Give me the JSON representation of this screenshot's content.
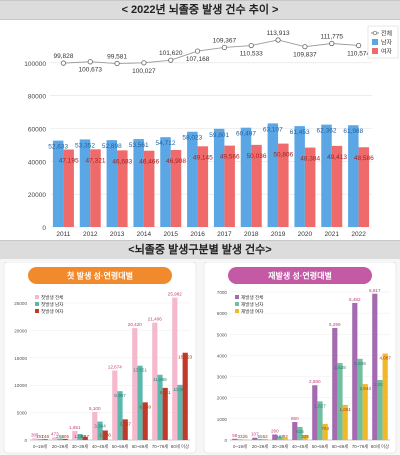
{
  "banner1": "< 2022년 뇌졸중 발생 건수 추이 >",
  "banner2": "<뇌졸중 발생구분별 발생 건수>",
  "colors": {
    "total": "#9a9a9a",
    "male": "#5ba7e5",
    "female": "#ef6b6b",
    "first_pill": "#f08a2c",
    "re_pill": "#c45aa6",
    "first_total": "#f5b8cd",
    "first_male": "#5ab8ad",
    "first_female": "#c0392b",
    "re_total": "#a56bb0",
    "re_male": "#6fbfa0",
    "re_female": "#f0b92a"
  },
  "chart_data": [
    {
      "type": "bar",
      "title": "",
      "categories": [
        "2011",
        "2012",
        "2013",
        "2014",
        "2015",
        "2016",
        "2017",
        "2018",
        "2019",
        "2020",
        "2021",
        "2022"
      ],
      "ylim": [
        0,
        120000
      ],
      "yticks": [
        "0",
        "20000",
        "40000",
        "60000",
        "80000",
        "100000"
      ],
      "legend": {
        "placement": "top-right",
        "entries": [
          "전체",
          "남자",
          "여자"
        ]
      },
      "series": [
        {
          "name": "전체",
          "kind": "line",
          "values": [
            99828,
            100673,
            99581,
            100027,
            101620,
            107168,
            109367,
            110533,
            113913,
            109837,
            111775,
            110574
          ],
          "labels": [
            "99,828",
            "100,673",
            "99,581",
            "100,027",
            "101,620",
            "107,168",
            "109,367",
            "110,533",
            "113,913",
            "109,837",
            "111,775",
            "110,574"
          ]
        },
        {
          "name": "남자",
          "kind": "bar",
          "values": [
            52633,
            53352,
            52898,
            53561,
            54712,
            58023,
            59801,
            60497,
            63107,
            61453,
            62362,
            61988
          ],
          "labels": [
            "52,633",
            "53,352",
            "52,898",
            "53,561",
            "54,712",
            "58,023",
            "59,801",
            "60,497",
            "63,107",
            "61,453",
            "62,362",
            "61,988"
          ]
        },
        {
          "name": "여자",
          "kind": "bar",
          "values": [
            47195,
            47321,
            46683,
            46466,
            46908,
            49145,
            49566,
            50036,
            50806,
            48384,
            49413,
            48586
          ],
          "labels": [
            "47,195",
            "47,321",
            "46,683",
            "46,466",
            "46,908",
            "49,145",
            "49,566",
            "50,036",
            "50,806",
            "48,384",
            "49,413",
            "48,586"
          ]
        }
      ]
    },
    {
      "type": "bar",
      "title": "첫 발생 성·연령대별",
      "categories": [
        "0~19세",
        "20~29세",
        "30~39세",
        "40~49세",
        "50~59세",
        "60~69세",
        "70~79세",
        "80세 이상"
      ],
      "ylim": [
        0,
        27000
      ],
      "yticks": [
        "0",
        "5000",
        "10000",
        "15000",
        "20000",
        "25000"
      ],
      "legend": {
        "placement": "top-left",
        "entries": [
          "첫발생 전체",
          "첫발생 남자",
          "첫발생 여자"
        ]
      },
      "series": [
        {
          "name": "첫발생 전체",
          "values": [
            305,
            473,
            1651,
            5100,
            12674,
            20420,
            21406,
            25982
          ],
          "labels": [
            "305",
            "473",
            "1,651",
            "5,100",
            "12,674",
            "20,420",
            "21,406",
            "25,982"
          ]
        },
        {
          "name": "첫발생 남자",
          "values": [
            157,
            268,
            1083,
            3364,
            8907,
            13551,
            11895,
            10059
          ],
          "labels": [
            "157",
            "268",
            "1,083",
            "3,364",
            "8,907",
            "13,551",
            "11,895",
            "10,059"
          ]
        },
        {
          "name": "첫발생 여자",
          "values": [
            148,
            205,
            567,
            1736,
            3767,
            6869,
            9511,
            15923
          ],
          "labels": [
            "148",
            "205",
            "567",
            "1,736",
            "3,767",
            "6,869",
            "9,511",
            "15,923"
          ]
        }
      ]
    },
    {
      "type": "bar",
      "title": "재발생 성·연령대별",
      "categories": [
        "0~19세",
        "20~29세",
        "30~39세",
        "40~49세",
        "50~59세",
        "60~69세",
        "70~79세",
        "80세 이상"
      ],
      "ylim": [
        0,
        7000
      ],
      "yticks": [
        "0",
        "1000",
        "2000",
        "3000",
        "4000",
        "5000",
        "6000",
        "7000"
      ],
      "legend": {
        "placement": "top-left",
        "entries": [
          "재발생 전체",
          "재발생 남자",
          "재발생 여자"
        ]
      },
      "series": [
        {
          "name": "재발생 전체",
          "values": [
            58,
            107,
            260,
            850,
            2590,
            5299,
            6482,
            6917
          ],
          "labels": [
            "58",
            "107",
            "260",
            "850",
            "2,590",
            "5,299",
            "6,482",
            "6,917"
          ]
        },
        {
          "name": "재발생 남자",
          "values": [
            33,
            55,
            167,
            615,
            1827,
            3638,
            3838,
            2839
          ],
          "labels": [
            "33",
            "55",
            "167",
            "615",
            "1,827",
            "3,638",
            "3,838",
            "2,839"
          ]
        },
        {
          "name": "재발생 여자",
          "values": [
            25,
            52,
            93,
            235,
            763,
            1661,
            2644,
            4087
          ],
          "labels": [
            "25",
            "52",
            "93",
            "235",
            "763",
            "1,661",
            "2,644",
            "4,087"
          ]
        }
      ]
    }
  ]
}
